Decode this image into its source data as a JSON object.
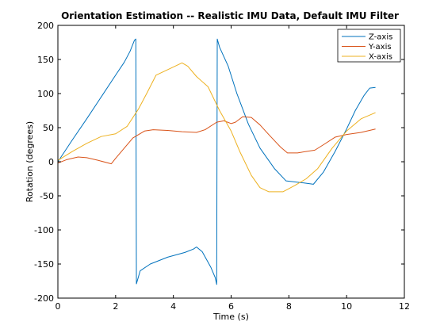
{
  "chart_data": {
    "type": "line",
    "title": "Orientation Estimation -- Realistic IMU Data, Default IMU Filter",
    "xlabel": "Time (s)",
    "ylabel": "Rotation (degrees)",
    "xlim": [
      0,
      12
    ],
    "ylim": [
      -200,
      200
    ],
    "xticks": [
      0,
      2,
      4,
      6,
      8,
      10,
      12
    ],
    "yticks": [
      -200,
      -150,
      -100,
      -50,
      0,
      50,
      100,
      150,
      200
    ],
    "grid": false,
    "legend_position": "top-right",
    "series": [
      {
        "name": "Z-axis",
        "color": "#0072BD",
        "points": [
          [
            0,
            0
          ],
          [
            0.5,
            32
          ],
          [
            1,
            63
          ],
          [
            1.5,
            95
          ],
          [
            2,
            127
          ],
          [
            2.3,
            146
          ],
          [
            2.5,
            162
          ],
          [
            2.65,
            178
          ],
          [
            2.7,
            180
          ],
          [
            2.72,
            -179
          ],
          [
            2.85,
            -160
          ],
          [
            3.2,
            -150
          ],
          [
            3.8,
            -140
          ],
          [
            4.4,
            -133
          ],
          [
            4.7,
            -128
          ],
          [
            4.8,
            -125
          ],
          [
            5.0,
            -132
          ],
          [
            5.3,
            -155
          ],
          [
            5.45,
            -170
          ],
          [
            5.5,
            -180
          ],
          [
            5.52,
            180
          ],
          [
            5.6,
            168
          ],
          [
            5.9,
            140
          ],
          [
            6.2,
            100
          ],
          [
            6.6,
            55
          ],
          [
            7.0,
            20
          ],
          [
            7.5,
            -10
          ],
          [
            7.9,
            -28
          ],
          [
            8.5,
            -31
          ],
          [
            8.85,
            -33
          ],
          [
            9.2,
            -15
          ],
          [
            9.6,
            15
          ],
          [
            10.0,
            48
          ],
          [
            10.3,
            75
          ],
          [
            10.6,
            97
          ],
          [
            10.8,
            108
          ],
          [
            11.0,
            109
          ]
        ]
      },
      {
        "name": "Y-axis",
        "color": "#D95319",
        "points": [
          [
            0,
            -2
          ],
          [
            0.3,
            3
          ],
          [
            0.7,
            7
          ],
          [
            1.0,
            6
          ],
          [
            1.4,
            2
          ],
          [
            1.85,
            -3
          ],
          [
            2.0,
            5
          ],
          [
            2.3,
            20
          ],
          [
            2.6,
            35
          ],
          [
            3.0,
            45
          ],
          [
            3.3,
            47
          ],
          [
            3.8,
            46
          ],
          [
            4.3,
            44
          ],
          [
            4.8,
            43
          ],
          [
            5.1,
            47
          ],
          [
            5.5,
            58
          ],
          [
            5.75,
            60
          ],
          [
            6.0,
            56
          ],
          [
            6.15,
            58
          ],
          [
            6.4,
            66
          ],
          [
            6.7,
            65
          ],
          [
            7.0,
            54
          ],
          [
            7.3,
            40
          ],
          [
            7.7,
            22
          ],
          [
            7.95,
            13
          ],
          [
            8.3,
            13
          ],
          [
            8.9,
            17
          ],
          [
            9.2,
            25
          ],
          [
            9.6,
            36
          ],
          [
            10.0,
            40
          ],
          [
            10.5,
            43
          ],
          [
            11.0,
            48
          ]
        ]
      },
      {
        "name": "X-axis",
        "color": "#EDB120",
        "points": [
          [
            0,
            2
          ],
          [
            0.5,
            15
          ],
          [
            1.0,
            27
          ],
          [
            1.5,
            37
          ],
          [
            2.0,
            41
          ],
          [
            2.4,
            52
          ],
          [
            2.8,
            78
          ],
          [
            3.1,
            102
          ],
          [
            3.4,
            127
          ],
          [
            3.8,
            135
          ],
          [
            4.3,
            145
          ],
          [
            4.5,
            140
          ],
          [
            4.8,
            125
          ],
          [
            5.2,
            110
          ],
          [
            5.6,
            75
          ],
          [
            6.0,
            45
          ],
          [
            6.3,
            15
          ],
          [
            6.7,
            -20
          ],
          [
            7.0,
            -38
          ],
          [
            7.3,
            -44
          ],
          [
            7.8,
            -44
          ],
          [
            8.2,
            -35
          ],
          [
            8.6,
            -25
          ],
          [
            9.0,
            -10
          ],
          [
            9.5,
            20
          ],
          [
            10.0,
            45
          ],
          [
            10.5,
            63
          ],
          [
            11.0,
            72
          ]
        ]
      }
    ]
  }
}
